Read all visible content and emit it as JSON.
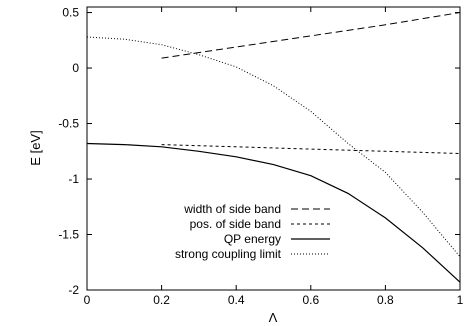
{
  "chart_data": {
    "type": "line",
    "title": "",
    "xlabel": "Λ",
    "ylabel": "E [eV]",
    "xlim": [
      0,
      1
    ],
    "ylim": [
      -2,
      0.55
    ],
    "xticks": [
      0,
      0.2,
      0.4,
      0.6,
      0.8,
      1
    ],
    "xtick_labels": [
      "0",
      "0.2",
      "0.4",
      "0.6",
      "0.8",
      "1"
    ],
    "yticks": [
      0.5,
      0,
      -0.5,
      -1,
      -1.5,
      -2
    ],
    "ytick_labels": [
      "0.5",
      "0",
      "-0.5",
      "-1",
      "-1.5",
      "-2"
    ],
    "grid": false,
    "legend_position": "lower-left",
    "series": [
      {
        "name": "width of side band",
        "style": "long-dash",
        "x": [
          0.2,
          0.4,
          0.6,
          0.8,
          1.0
        ],
        "y": [
          0.09,
          0.19,
          0.29,
          0.39,
          0.5
        ]
      },
      {
        "name": "pos. of side band",
        "style": "short-dash",
        "x": [
          0.2,
          0.4,
          0.6,
          0.8,
          1.0
        ],
        "y": [
          -0.69,
          -0.71,
          -0.73,
          -0.75,
          -0.77
        ]
      },
      {
        "name": "QP energy",
        "style": "solid",
        "x": [
          0,
          0.1,
          0.2,
          0.3,
          0.4,
          0.5,
          0.6,
          0.7,
          0.8,
          0.9,
          1.0
        ],
        "y": [
          -0.68,
          -0.69,
          -0.71,
          -0.75,
          -0.8,
          -0.87,
          -0.97,
          -1.13,
          -1.35,
          -1.62,
          -1.93
        ]
      },
      {
        "name": "strong coupling limit",
        "style": "dotted",
        "x": [
          0,
          0.1,
          0.2,
          0.3,
          0.4,
          0.5,
          0.6,
          0.7,
          0.8,
          0.9,
          1.0
        ],
        "y": [
          0.28,
          0.26,
          0.21,
          0.12,
          0.01,
          -0.16,
          -0.39,
          -0.68,
          -0.94,
          -1.3,
          -1.7
        ]
      }
    ]
  }
}
